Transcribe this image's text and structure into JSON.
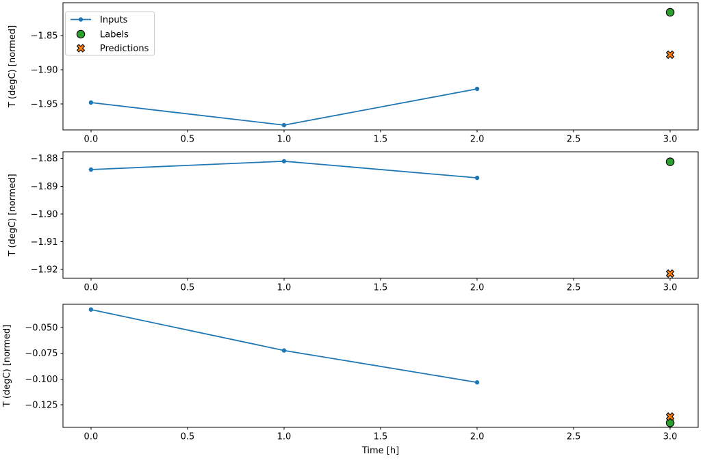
{
  "figure": {
    "xlabel": "Time [h]",
    "ylabel": "T (degC) [normed]",
    "background": "#ffffff"
  },
  "legend": {
    "position": "upper-left-subplot-1",
    "entries": [
      {
        "label": "Inputs",
        "marker": "line-dot",
        "color": "#1f77b4",
        "edge": "#1f77b4"
      },
      {
        "label": "Labels",
        "marker": "circle",
        "color": "#2ca02c",
        "edge": "#000000"
      },
      {
        "label": "Predictions",
        "marker": "X",
        "color": "#ff7f0e",
        "edge": "#000000"
      }
    ]
  },
  "chart_data": [
    {
      "type": "line",
      "subplot": 1,
      "ylabel": "T (degC) [normed]",
      "xlabel": "",
      "xlim": [
        -0.145,
        3.145
      ],
      "ylim": [
        -1.988,
        -1.802
      ],
      "xticks": [
        0.0,
        0.5,
        1.0,
        1.5,
        2.0,
        2.5,
        3.0
      ],
      "xtick_labels": [
        "0.0",
        "0.5",
        "1.0",
        "1.5",
        "2.0",
        "2.5",
        "3.0"
      ],
      "yticks": [
        -1.85,
        -1.9,
        -1.95
      ],
      "ytick_labels": [
        "−1.85",
        "−1.90",
        "−1.95"
      ],
      "grid": false,
      "series": [
        {
          "name": "Inputs",
          "marker": "line-dot",
          "color": "#1f77b4",
          "x": [
            0,
            1,
            2
          ],
          "y": [
            -1.948,
            -1.981,
            -1.928
          ]
        },
        {
          "name": "Labels",
          "marker": "circle",
          "color": "#2ca02c",
          "x": [
            3
          ],
          "y": [
            -1.816
          ]
        },
        {
          "name": "Predictions",
          "marker": "X",
          "color": "#ff7f0e",
          "x": [
            3
          ],
          "y": [
            -1.878
          ]
        }
      ]
    },
    {
      "type": "line",
      "subplot": 2,
      "ylabel": "T (degC) [normed]",
      "xlabel": "",
      "xlim": [
        -0.145,
        3.145
      ],
      "ylim": [
        -1.9232,
        -1.8776
      ],
      "xticks": [
        0.0,
        0.5,
        1.0,
        1.5,
        2.0,
        2.5,
        3.0
      ],
      "xtick_labels": [
        "0.0",
        "0.5",
        "1.0",
        "1.5",
        "2.0",
        "2.5",
        "3.0"
      ],
      "yticks": [
        -1.88,
        -1.89,
        -1.9,
        -1.91,
        -1.92
      ],
      "ytick_labels": [
        "−1.88",
        "−1.89",
        "−1.90",
        "−1.91",
        "−1.92"
      ],
      "grid": false,
      "series": [
        {
          "name": "Inputs",
          "marker": "line-dot",
          "color": "#1f77b4",
          "x": [
            0,
            1,
            2
          ],
          "y": [
            -1.884,
            -1.881,
            -1.887
          ]
        },
        {
          "name": "Labels",
          "marker": "circle",
          "color": "#2ca02c",
          "x": [
            3
          ],
          "y": [
            -1.8812
          ]
        },
        {
          "name": "Predictions",
          "marker": "X",
          "color": "#ff7f0e",
          "x": [
            3
          ],
          "y": [
            -1.9215
          ]
        }
      ]
    },
    {
      "type": "line",
      "subplot": 3,
      "ylabel": "T (degC) [normed]",
      "xlabel": "Time [h]",
      "xlim": [
        -0.145,
        3.145
      ],
      "ylim": [
        -0.1468,
        -0.0275
      ],
      "xticks": [
        0.0,
        0.5,
        1.0,
        1.5,
        2.0,
        2.5,
        3.0
      ],
      "xtick_labels": [
        "0.0",
        "0.5",
        "1.0",
        "1.5",
        "2.0",
        "2.5",
        "3.0"
      ],
      "yticks": [
        -0.05,
        -0.075,
        -0.1,
        -0.125
      ],
      "ytick_labels": [
        "−0.050",
        "−0.075",
        "−0.100",
        "−0.125"
      ],
      "grid": false,
      "series": [
        {
          "name": "Inputs",
          "marker": "line-dot",
          "color": "#1f77b4",
          "x": [
            0,
            1,
            2
          ],
          "y": [
            -0.0326,
            -0.0723,
            -0.1032
          ]
        },
        {
          "name": "Labels",
          "marker": "circle",
          "color": "#2ca02c",
          "x": [
            3
          ],
          "y": [
            -0.1424
          ]
        },
        {
          "name": "Predictions",
          "marker": "X",
          "color": "#ff7f0e",
          "x": [
            3
          ],
          "y": [
            -0.1364
          ]
        }
      ]
    }
  ]
}
